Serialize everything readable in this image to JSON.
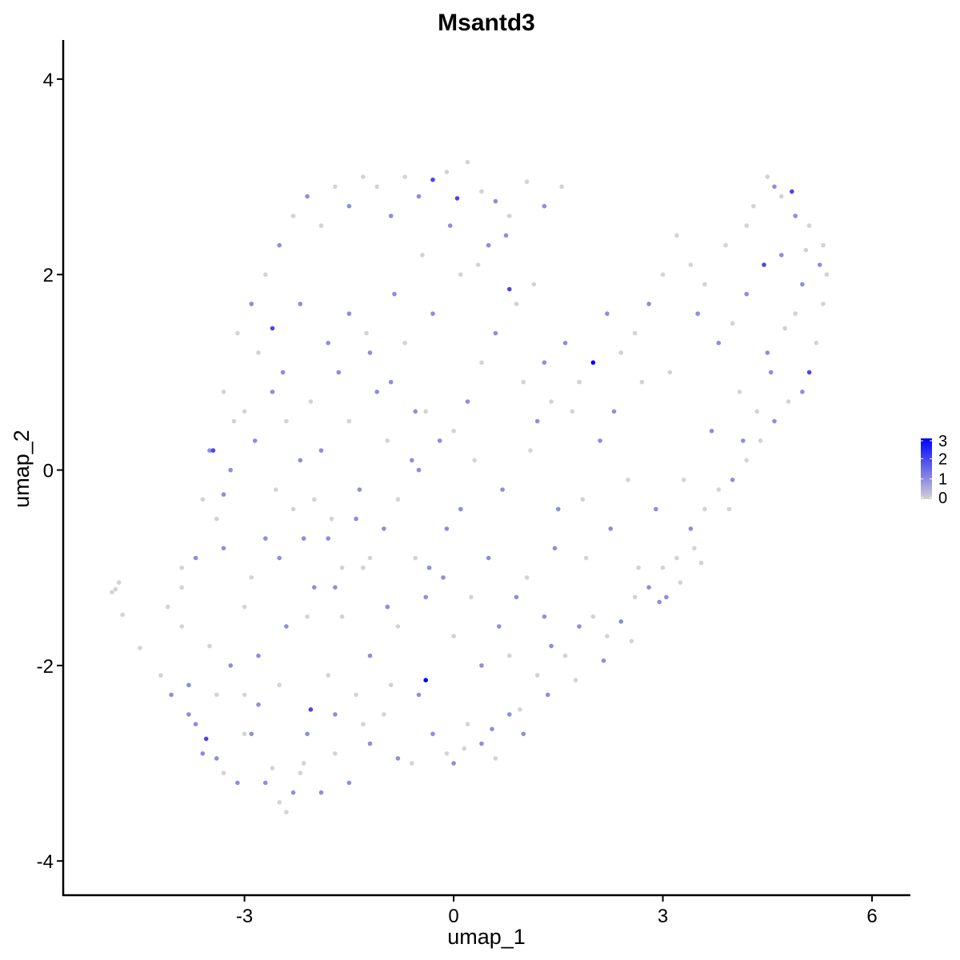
{
  "chart_data": {
    "type": "scatter",
    "title": "Msantd3",
    "xlabel": "umap_1",
    "ylabel": "umap_2",
    "xlim": [
      -5.6,
      6.55
    ],
    "ylim": [
      -4.35,
      4.4
    ],
    "x_ticks": [
      -3,
      0,
      3,
      6
    ],
    "y_ticks": [
      -4,
      -2,
      0,
      2,
      4
    ],
    "x_tick_labels": [
      "-3",
      "0",
      "3",
      "6"
    ],
    "y_tick_labels": [
      "-4",
      "-2",
      "0",
      "2",
      "4"
    ],
    "grid": false,
    "legend": {
      "placement": "right",
      "type": "colorbar",
      "min": 0,
      "max": 3,
      "ticks": [
        0,
        1,
        2,
        3
      ],
      "tick_labels": [
        "0",
        "1",
        "2",
        "3"
      ],
      "low_color": "#d3d3d3",
      "high_color": "#0000ff"
    },
    "points": [
      [
        -4.9,
        -1.25,
        0
      ],
      [
        -4.8,
        -1.15,
        0
      ],
      [
        -4.85,
        -1.22,
        0
      ],
      [
        -4.75,
        -1.48,
        0
      ],
      [
        -4.5,
        -1.82,
        0
      ],
      [
        -4.2,
        -2.1,
        0
      ],
      [
        -4.1,
        -1.4,
        0
      ],
      [
        -3.9,
        -1.6,
        0
      ],
      [
        -3.8,
        -2.2,
        1
      ],
      [
        -3.7,
        -2.6,
        1
      ],
      [
        -3.55,
        -2.75,
        2
      ],
      [
        -3.4,
        -2.95,
        1
      ],
      [
        -3.3,
        -3.1,
        0
      ],
      [
        -3.1,
        -3.2,
        1
      ],
      [
        -3.0,
        -2.7,
        0
      ],
      [
        -2.8,
        -2.4,
        1
      ],
      [
        -2.6,
        -3.05,
        0
      ],
      [
        -2.5,
        -3.4,
        0
      ],
      [
        -2.4,
        -3.5,
        0
      ],
      [
        -2.3,
        -3.3,
        1
      ],
      [
        -2.2,
        -3.1,
        0
      ],
      [
        -2.05,
        -2.45,
        2
      ],
      [
        -1.9,
        -3.3,
        1
      ],
      [
        -1.7,
        -2.9,
        0
      ],
      [
        -1.5,
        -3.2,
        1
      ],
      [
        -1.4,
        -2.3,
        0
      ],
      [
        -1.2,
        -2.8,
        1
      ],
      [
        -1.0,
        -2.5,
        0
      ],
      [
        -0.8,
        -2.95,
        1
      ],
      [
        -0.6,
        -3.0,
        0
      ],
      [
        -0.4,
        -2.15,
        3
      ],
      [
        -0.3,
        -2.7,
        1
      ],
      [
        -0.1,
        -2.9,
        0
      ],
      [
        0.0,
        -3.0,
        1
      ],
      [
        0.2,
        -2.6,
        0
      ],
      [
        0.4,
        -2.8,
        1
      ],
      [
        0.6,
        -2.95,
        0
      ],
      [
        0.8,
        -2.5,
        1
      ],
      [
        1.0,
        -2.7,
        1
      ],
      [
        1.2,
        -2.1,
        0
      ],
      [
        1.4,
        -1.8,
        1
      ],
      [
        1.6,
        -1.9,
        0
      ],
      [
        1.8,
        -1.6,
        1
      ],
      [
        2.0,
        -1.5,
        0
      ],
      [
        2.2,
        -1.7,
        0
      ],
      [
        2.4,
        -1.55,
        1
      ],
      [
        2.6,
        -1.3,
        0
      ],
      [
        2.8,
        -1.2,
        1
      ],
      [
        3.0,
        -1.0,
        0
      ],
      [
        3.2,
        -0.9,
        0
      ],
      [
        3.4,
        -0.6,
        1
      ],
      [
        3.6,
        -0.4,
        0
      ],
      [
        3.8,
        -0.2,
        0
      ],
      [
        4.0,
        -0.1,
        1
      ],
      [
        4.2,
        0.1,
        0
      ],
      [
        4.4,
        0.3,
        0
      ],
      [
        4.6,
        0.5,
        1
      ],
      [
        4.8,
        0.7,
        0
      ],
      [
        5.0,
        0.8,
        1
      ],
      [
        5.1,
        1.0,
        2
      ],
      [
        5.2,
        1.3,
        0
      ],
      [
        5.3,
        1.7,
        0
      ],
      [
        5.35,
        2.0,
        0
      ],
      [
        5.3,
        2.3,
        0
      ],
      [
        5.1,
        2.5,
        0
      ],
      [
        4.9,
        2.6,
        1
      ],
      [
        4.7,
        2.8,
        0
      ],
      [
        4.5,
        3.0,
        0
      ],
      [
        4.3,
        2.7,
        0
      ],
      [
        4.45,
        2.1,
        2
      ],
      [
        4.2,
        1.8,
        1
      ],
      [
        4.0,
        1.5,
        0
      ],
      [
        3.8,
        1.3,
        1
      ],
      [
        3.6,
        1.9,
        0
      ],
      [
        3.4,
        2.1,
        0
      ],
      [
        3.2,
        2.4,
        0
      ],
      [
        3.0,
        2.0,
        0
      ],
      [
        2.8,
        1.7,
        1
      ],
      [
        2.6,
        1.4,
        0
      ],
      [
        2.4,
        1.2,
        0
      ],
      [
        2.2,
        1.6,
        1
      ],
      [
        2.0,
        1.1,
        3
      ],
      [
        1.8,
        0.9,
        0
      ],
      [
        1.6,
        1.3,
        1
      ],
      [
        1.4,
        0.7,
        0
      ],
      [
        1.2,
        0.5,
        1
      ],
      [
        1.0,
        0.9,
        0
      ],
      [
        0.8,
        1.85,
        2
      ],
      [
        0.6,
        1.4,
        1
      ],
      [
        0.4,
        1.1,
        0
      ],
      [
        0.2,
        0.7,
        1
      ],
      [
        0.0,
        0.4,
        0
      ],
      [
        -0.2,
        0.3,
        1
      ],
      [
        -0.4,
        0.6,
        0
      ],
      [
        -0.6,
        0.1,
        1
      ],
      [
        -0.8,
        -0.3,
        0
      ],
      [
        -1.0,
        -0.6,
        1
      ],
      [
        -1.2,
        -0.9,
        0
      ],
      [
        -1.4,
        -0.5,
        1
      ],
      [
        -1.6,
        -1.0,
        0
      ],
      [
        -1.8,
        -0.7,
        1
      ],
      [
        -2.0,
        -0.3,
        0
      ],
      [
        -2.2,
        0.1,
        1
      ],
      [
        -2.4,
        0.5,
        0
      ],
      [
        -2.6,
        0.8,
        1
      ],
      [
        -2.8,
        1.2,
        0
      ],
      [
        -3.0,
        0.6,
        0
      ],
      [
        -3.2,
        0.0,
        1
      ],
      [
        -3.4,
        -0.5,
        0
      ],
      [
        -3.5,
        0.2,
        1
      ],
      [
        -3.6,
        -0.3,
        0
      ],
      [
        -3.7,
        -0.9,
        1
      ],
      [
        -3.9,
        -1.2,
        0
      ],
      [
        -3.3,
        0.8,
        0
      ],
      [
        -3.1,
        1.4,
        0
      ],
      [
        -2.9,
        1.7,
        1
      ],
      [
        -2.7,
        2.0,
        0
      ],
      [
        -2.5,
        2.3,
        1
      ],
      [
        -2.3,
        2.6,
        0
      ],
      [
        -2.1,
        2.8,
        1
      ],
      [
        -1.9,
        2.5,
        0
      ],
      [
        -1.7,
        2.9,
        0
      ],
      [
        -1.5,
        2.7,
        1
      ],
      [
        -1.3,
        3.0,
        0
      ],
      [
        -1.1,
        2.9,
        0
      ],
      [
        -0.9,
        2.6,
        1
      ],
      [
        -0.7,
        3.0,
        0
      ],
      [
        -0.5,
        2.8,
        1
      ],
      [
        -0.3,
        2.97,
        2
      ],
      [
        -0.1,
        3.05,
        0
      ],
      [
        0.05,
        2.78,
        2
      ],
      [
        0.2,
        3.15,
        0
      ],
      [
        0.4,
        2.85,
        0
      ],
      [
        0.6,
        2.75,
        1
      ],
      [
        0.8,
        2.6,
        0
      ],
      [
        1.05,
        2.95,
        0
      ],
      [
        1.3,
        2.7,
        1
      ],
      [
        1.55,
        2.9,
        0
      ],
      [
        -2.6,
        1.45,
        2
      ],
      [
        -2.2,
        1.7,
        1
      ],
      [
        -1.8,
        1.3,
        1
      ],
      [
        -1.5,
        1.6,
        1
      ],
      [
        -1.2,
        1.2,
        1
      ],
      [
        -0.9,
        0.9,
        1
      ],
      [
        -0.5,
        0.0,
        1
      ],
      [
        -0.35,
        -1.0,
        1
      ],
      [
        0.1,
        -0.4,
        1
      ],
      [
        0.5,
        -0.9,
        1
      ],
      [
        0.9,
        -1.3,
        1
      ],
      [
        1.3,
        -1.5,
        1
      ],
      [
        -2.8,
        -1.9,
        1
      ],
      [
        -2.4,
        -1.6,
        1
      ],
      [
        -2.0,
        -1.2,
        1
      ],
      [
        -1.6,
        -1.5,
        0
      ],
      [
        -1.2,
        -1.9,
        1
      ],
      [
        -0.8,
        -1.6,
        0
      ],
      [
        -0.4,
        -1.3,
        1
      ],
      [
        0.0,
        -1.7,
        0
      ],
      [
        0.4,
        -2.0,
        1
      ],
      [
        0.8,
        -1.9,
        0
      ],
      [
        -3.2,
        -2.0,
        1
      ],
      [
        -2.9,
        -2.7,
        1
      ],
      [
        -2.5,
        -2.2,
        0
      ],
      [
        -2.1,
        -2.7,
        1
      ],
      [
        -1.8,
        -2.1,
        0
      ],
      [
        -3.5,
        -1.8,
        0
      ],
      [
        -3.8,
        -2.5,
        1
      ],
      [
        -4.05,
        -2.3,
        1
      ],
      [
        -3.4,
        -2.3,
        0
      ],
      [
        -3.0,
        -1.4,
        0
      ],
      [
        -2.7,
        -0.7,
        1
      ],
      [
        -2.3,
        -0.4,
        0
      ],
      [
        -1.9,
        0.2,
        1
      ],
      [
        -1.5,
        0.5,
        0
      ],
      [
        -1.1,
        0.8,
        1
      ],
      [
        -0.7,
        1.3,
        0
      ],
      [
        -0.3,
        1.6,
        1
      ],
      [
        0.1,
        2.0,
        0
      ],
      [
        0.5,
        2.3,
        1
      ],
      [
        0.9,
        1.7,
        0
      ],
      [
        1.3,
        1.1,
        1
      ],
      [
        1.7,
        0.6,
        0
      ],
      [
        2.1,
        0.3,
        1
      ],
      [
        2.5,
        -0.1,
        0
      ],
      [
        2.9,
        -0.4,
        1
      ],
      [
        3.3,
        -0.1,
        0
      ],
      [
        3.7,
        0.4,
        1
      ],
      [
        4.1,
        0.8,
        0
      ],
      [
        4.5,
        1.2,
        1
      ],
      [
        4.9,
        1.6,
        0
      ],
      [
        3.1,
        1.0,
        0
      ],
      [
        3.5,
        1.6,
        1
      ],
      [
        3.9,
        2.3,
        0
      ],
      [
        4.2,
        2.5,
        0
      ],
      [
        4.7,
        2.2,
        1
      ],
      [
        2.3,
        0.6,
        1
      ],
      [
        2.7,
        0.9,
        0
      ],
      [
        1.9,
        -0.9,
        0
      ],
      [
        1.5,
        -0.4,
        1
      ],
      [
        1.1,
        0.2,
        0
      ],
      [
        0.7,
        -0.2,
        1
      ],
      [
        0.3,
        0.1,
        0
      ],
      [
        -0.1,
        -0.6,
        1
      ],
      [
        -0.5,
        -2.3,
        1
      ],
      [
        -0.9,
        -2.2,
        0
      ],
      [
        -1.3,
        -2.6,
        0
      ],
      [
        -1.7,
        -2.5,
        1
      ],
      [
        -2.15,
        -3.0,
        0
      ],
      [
        -2.7,
        -3.2,
        1
      ],
      [
        -3.0,
        -2.3,
        0
      ],
      [
        -3.6,
        -2.9,
        1
      ],
      [
        -3.9,
        -1.0,
        0
      ],
      [
        -3.3,
        -0.8,
        1
      ],
      [
        -2.9,
        -1.1,
        0
      ],
      [
        -2.5,
        -0.9,
        1
      ],
      [
        -2.1,
        -1.5,
        0
      ],
      [
        -1.7,
        -1.2,
        1
      ],
      [
        -1.3,
        -1.0,
        0
      ],
      [
        -0.95,
        -1.4,
        1
      ],
      [
        -0.55,
        -0.9,
        0
      ],
      [
        -0.15,
        -1.1,
        1
      ],
      [
        0.25,
        -1.3,
        0
      ],
      [
        0.65,
        -1.6,
        1
      ],
      [
        1.05,
        -1.1,
        0
      ],
      [
        1.45,
        -0.8,
        1
      ],
      [
        1.85,
        -0.3,
        0
      ],
      [
        2.25,
        -0.6,
        1
      ],
      [
        2.65,
        -1.0,
        0
      ],
      [
        3.05,
        -1.3,
        1
      ],
      [
        3.45,
        -0.8,
        0
      ],
      [
        -2.45,
        1.0,
        1
      ],
      [
        -2.05,
        0.7,
        0
      ],
      [
        -1.65,
        1.0,
        1
      ],
      [
        -1.25,
        1.4,
        0
      ],
      [
        -0.85,
        1.8,
        1
      ],
      [
        -0.45,
        2.2,
        0
      ],
      [
        -0.05,
        2.5,
        1
      ],
      [
        0.35,
        2.1,
        0
      ],
      [
        0.75,
        2.4,
        1
      ],
      [
        1.15,
        1.9,
        0
      ],
      [
        -3.3,
        -0.25,
        1
      ],
      [
        -3.45,
        0.2,
        2
      ],
      [
        -3.15,
        0.5,
        0
      ],
      [
        -2.85,
        0.3,
        1
      ],
      [
        -2.55,
        -0.2,
        0
      ],
      [
        -2.15,
        -0.7,
        1
      ],
      [
        -1.75,
        -0.5,
        0
      ],
      [
        -1.35,
        -0.2,
        1
      ],
      [
        -0.95,
        0.3,
        0
      ],
      [
        -0.55,
        0.6,
        1
      ],
      [
        4.6,
        2.9,
        1
      ],
      [
        4.85,
        2.85,
        2
      ],
      [
        5.05,
        2.25,
        0
      ],
      [
        5.25,
        2.1,
        1
      ],
      [
        5.0,
        1.9,
        1
      ],
      [
        4.75,
        1.45,
        0
      ],
      [
        4.55,
        1.0,
        1
      ],
      [
        4.35,
        0.6,
        0
      ],
      [
        4.15,
        0.3,
        1
      ],
      [
        3.95,
        -0.4,
        0
      ],
      [
        3.55,
        -0.95,
        0
      ],
      [
        3.25,
        -1.15,
        0
      ],
      [
        2.95,
        -1.35,
        1
      ],
      [
        2.55,
        -1.75,
        0
      ],
      [
        2.15,
        -1.95,
        1
      ],
      [
        1.75,
        -2.15,
        0
      ],
      [
        1.35,
        -2.3,
        1
      ],
      [
        0.95,
        -2.45,
        0
      ],
      [
        0.55,
        -2.65,
        1
      ],
      [
        0.15,
        -2.85,
        0
      ]
    ]
  }
}
